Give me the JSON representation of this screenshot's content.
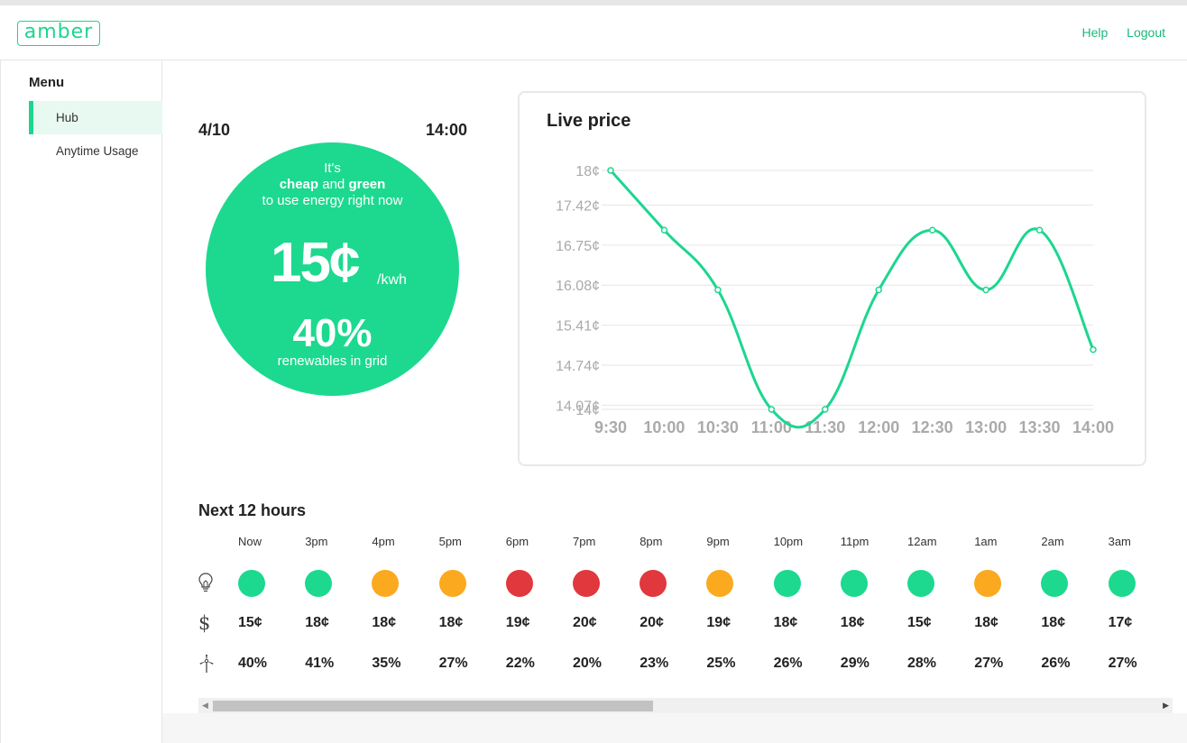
{
  "header": {
    "logo": "amber",
    "links": [
      "Help",
      "Logout"
    ]
  },
  "sidebar": {
    "title": "Menu",
    "items": [
      {
        "label": "Hub",
        "active": true
      },
      {
        "label": "Anytime Usage",
        "active": false
      }
    ]
  },
  "current": {
    "date": "4/10",
    "time": "14:00",
    "line1": "It's",
    "bold1": "cheap",
    "and": " and ",
    "bold2": "green",
    "line3": "to use energy right now",
    "price": "15¢",
    "unit": "/kwh",
    "renewables": "40%",
    "renewables_label": "renewables in grid",
    "color": "#1cd98f"
  },
  "live_price": {
    "title": "Live price"
  },
  "chart_data": {
    "type": "line",
    "title": "Live price",
    "categories": [
      "9:30",
      "10:00",
      "10:30",
      "11:00",
      "11:30",
      "12:00",
      "12:30",
      "13:00",
      "13:30",
      "14:00"
    ],
    "series": [
      {
        "values": [
          18,
          17.0,
          16.0,
          14,
          14,
          16.0,
          17.0,
          16.0,
          17.0,
          15.0
        ]
      }
    ],
    "yticks": [
      "18¢",
      "17.42¢",
      "16.75¢",
      "16.08¢",
      "15.41¢",
      "14.74¢",
      "14.07¢",
      "14¢"
    ],
    "ytick_values": [
      18,
      17.42,
      16.75,
      16.08,
      15.41,
      14.74,
      14.07,
      14
    ],
    "ylim": [
      14,
      18
    ],
    "grid": true,
    "color": "#1cd68f"
  },
  "forecast": {
    "title": "Next 12 hours",
    "hours": [
      {
        "label": "Now",
        "status": "green",
        "price": "15¢",
        "renewables": "40%"
      },
      {
        "label": "3pm",
        "status": "green",
        "price": "18¢",
        "renewables": "41%"
      },
      {
        "label": "4pm",
        "status": "orange",
        "price": "18¢",
        "renewables": "35%"
      },
      {
        "label": "5pm",
        "status": "orange",
        "price": "18¢",
        "renewables": "27%"
      },
      {
        "label": "6pm",
        "status": "red",
        "price": "19¢",
        "renewables": "22%"
      },
      {
        "label": "7pm",
        "status": "red",
        "price": "20¢",
        "renewables": "20%"
      },
      {
        "label": "8pm",
        "status": "red",
        "price": "20¢",
        "renewables": "23%"
      },
      {
        "label": "9pm",
        "status": "orange",
        "price": "19¢",
        "renewables": "25%"
      },
      {
        "label": "10pm",
        "status": "green",
        "price": "18¢",
        "renewables": "26%"
      },
      {
        "label": "11pm",
        "status": "green",
        "price": "18¢",
        "renewables": "29%"
      },
      {
        "label": "12am",
        "status": "green",
        "price": "15¢",
        "renewables": "28%"
      },
      {
        "label": "1am",
        "status": "orange",
        "price": "18¢",
        "renewables": "27%"
      },
      {
        "label": "2am",
        "status": "green",
        "price": "18¢",
        "renewables": "26%"
      },
      {
        "label": "3am",
        "status": "green",
        "price": "17¢",
        "renewables": "27%"
      }
    ],
    "status_colors": {
      "green": "#1cd98f",
      "orange": "#fba91e",
      "red": "#e0383c"
    },
    "row_icons": [
      "lightbulb-icon",
      "dollar-icon",
      "wind-turbine-icon"
    ],
    "dollar_symbol": "$"
  }
}
